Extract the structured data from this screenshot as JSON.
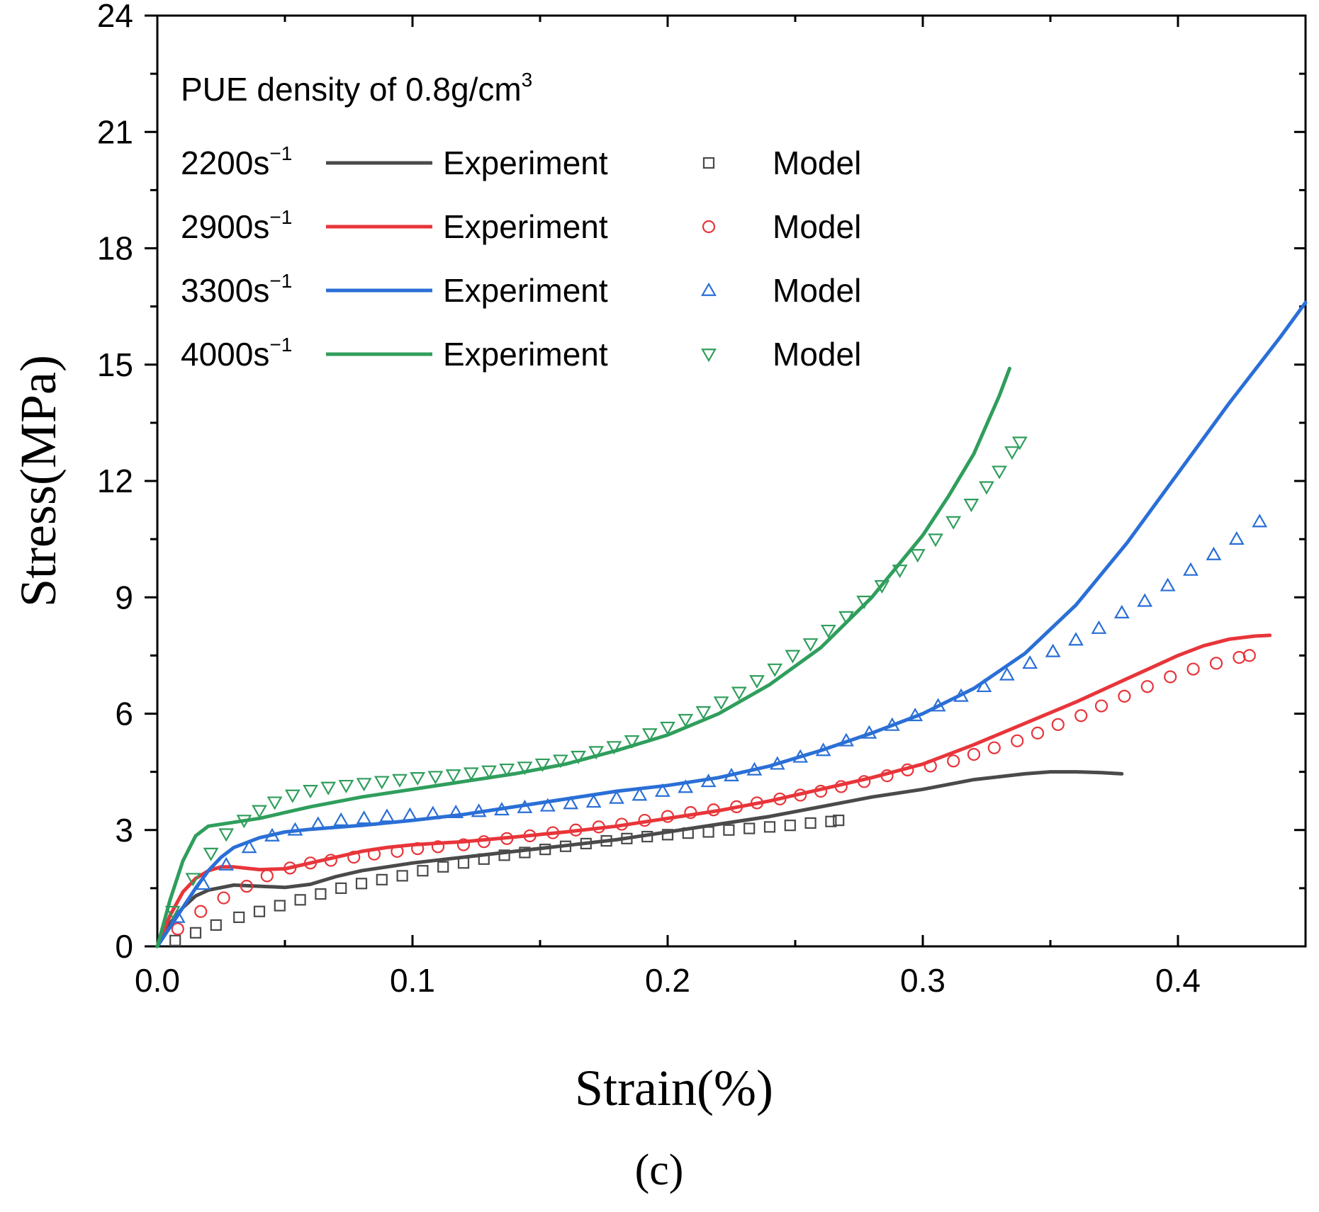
{
  "chart_data": {
    "type": "line",
    "title": "",
    "xlabel": "Strain(%)",
    "ylabel": "Stress(MPa)",
    "panel_label": "(c)",
    "xlim": [
      0.0,
      0.45
    ],
    "ylim": [
      0,
      24
    ],
    "xticks": [
      0.0,
      0.1,
      0.2,
      0.3,
      0.4
    ],
    "xtick_labels": [
      "0.0",
      "0.1",
      "0.2",
      "0.3",
      "0.4"
    ],
    "yticks": [
      0,
      3,
      6,
      9,
      12,
      15,
      18,
      21,
      24
    ],
    "ytick_labels": [
      "0",
      "3",
      "6",
      "9",
      "12",
      "15",
      "18",
      "21",
      "24"
    ],
    "grid": false,
    "legend": {
      "placement": "top-left",
      "title": "PUE density of 0.8g/cm",
      "title_sup": "3",
      "exp_label": "Experiment",
      "model_label": "Model"
    },
    "series": [
      {
        "rate": "2200s",
        "rate_sup": "−1",
        "color": "#4a4a4a",
        "marker": "square",
        "experiment": [
          [
            0.0,
            0.0
          ],
          [
            0.005,
            0.6
          ],
          [
            0.01,
            1.0
          ],
          [
            0.015,
            1.3
          ],
          [
            0.02,
            1.45
          ],
          [
            0.03,
            1.58
          ],
          [
            0.04,
            1.55
          ],
          [
            0.05,
            1.52
          ],
          [
            0.06,
            1.6
          ],
          [
            0.07,
            1.8
          ],
          [
            0.08,
            1.95
          ],
          [
            0.09,
            2.05
          ],
          [
            0.1,
            2.15
          ],
          [
            0.12,
            2.3
          ],
          [
            0.14,
            2.45
          ],
          [
            0.16,
            2.6
          ],
          [
            0.18,
            2.75
          ],
          [
            0.2,
            2.95
          ],
          [
            0.22,
            3.15
          ],
          [
            0.24,
            3.35
          ],
          [
            0.26,
            3.6
          ],
          [
            0.28,
            3.85
          ],
          [
            0.3,
            4.05
          ],
          [
            0.32,
            4.3
          ],
          [
            0.34,
            4.45
          ],
          [
            0.35,
            4.5
          ],
          [
            0.36,
            4.5
          ],
          [
            0.37,
            4.48
          ],
          [
            0.378,
            4.45
          ]
        ],
        "model": [
          [
            0.007,
            0.15
          ],
          [
            0.015,
            0.35
          ],
          [
            0.023,
            0.55
          ],
          [
            0.032,
            0.75
          ],
          [
            0.04,
            0.9
          ],
          [
            0.048,
            1.05
          ],
          [
            0.056,
            1.2
          ],
          [
            0.064,
            1.35
          ],
          [
            0.072,
            1.5
          ],
          [
            0.08,
            1.62
          ],
          [
            0.088,
            1.72
          ],
          [
            0.096,
            1.82
          ],
          [
            0.104,
            1.95
          ],
          [
            0.112,
            2.05
          ],
          [
            0.12,
            2.15
          ],
          [
            0.128,
            2.25
          ],
          [
            0.136,
            2.35
          ],
          [
            0.144,
            2.42
          ],
          [
            0.152,
            2.5
          ],
          [
            0.16,
            2.58
          ],
          [
            0.168,
            2.65
          ],
          [
            0.176,
            2.72
          ],
          [
            0.184,
            2.78
          ],
          [
            0.192,
            2.83
          ],
          [
            0.2,
            2.88
          ],
          [
            0.208,
            2.92
          ],
          [
            0.216,
            2.95
          ],
          [
            0.224,
            3.0
          ],
          [
            0.232,
            3.04
          ],
          [
            0.24,
            3.08
          ],
          [
            0.248,
            3.12
          ],
          [
            0.256,
            3.18
          ],
          [
            0.264,
            3.22
          ],
          [
            0.267,
            3.25
          ]
        ]
      },
      {
        "rate": "2900s",
        "rate_sup": "−1",
        "color": "#e8353a",
        "marker": "circle",
        "experiment": [
          [
            0.0,
            0.0
          ],
          [
            0.005,
            0.8
          ],
          [
            0.01,
            1.4
          ],
          [
            0.015,
            1.75
          ],
          [
            0.02,
            1.95
          ],
          [
            0.025,
            2.05
          ],
          [
            0.03,
            2.05
          ],
          [
            0.04,
            1.98
          ],
          [
            0.05,
            2.0
          ],
          [
            0.06,
            2.15
          ],
          [
            0.07,
            2.3
          ],
          [
            0.08,
            2.45
          ],
          [
            0.09,
            2.55
          ],
          [
            0.1,
            2.62
          ],
          [
            0.12,
            2.7
          ],
          [
            0.14,
            2.82
          ],
          [
            0.16,
            2.95
          ],
          [
            0.18,
            3.1
          ],
          [
            0.2,
            3.3
          ],
          [
            0.22,
            3.5
          ],
          [
            0.24,
            3.75
          ],
          [
            0.26,
            4.05
          ],
          [
            0.28,
            4.35
          ],
          [
            0.3,
            4.7
          ],
          [
            0.32,
            5.2
          ],
          [
            0.34,
            5.75
          ],
          [
            0.36,
            6.3
          ],
          [
            0.38,
            6.9
          ],
          [
            0.4,
            7.5
          ],
          [
            0.41,
            7.75
          ],
          [
            0.42,
            7.92
          ],
          [
            0.43,
            8.0
          ],
          [
            0.436,
            8.02
          ]
        ],
        "model": [
          [
            0.008,
            0.45
          ],
          [
            0.017,
            0.9
          ],
          [
            0.026,
            1.25
          ],
          [
            0.035,
            1.55
          ],
          [
            0.043,
            1.82
          ],
          [
            0.052,
            2.02
          ],
          [
            0.06,
            2.15
          ],
          [
            0.068,
            2.22
          ],
          [
            0.077,
            2.3
          ],
          [
            0.085,
            2.38
          ],
          [
            0.094,
            2.45
          ],
          [
            0.102,
            2.52
          ],
          [
            0.11,
            2.57
          ],
          [
            0.12,
            2.62
          ],
          [
            0.128,
            2.7
          ],
          [
            0.137,
            2.78
          ],
          [
            0.146,
            2.85
          ],
          [
            0.155,
            2.93
          ],
          [
            0.164,
            3.0
          ],
          [
            0.173,
            3.08
          ],
          [
            0.182,
            3.15
          ],
          [
            0.191,
            3.25
          ],
          [
            0.2,
            3.35
          ],
          [
            0.209,
            3.45
          ],
          [
            0.218,
            3.52
          ],
          [
            0.227,
            3.6
          ],
          [
            0.235,
            3.7
          ],
          [
            0.244,
            3.8
          ],
          [
            0.252,
            3.9
          ],
          [
            0.26,
            4.0
          ],
          [
            0.268,
            4.12
          ],
          [
            0.277,
            4.25
          ],
          [
            0.286,
            4.4
          ],
          [
            0.294,
            4.55
          ],
          [
            0.303,
            4.65
          ],
          [
            0.312,
            4.78
          ],
          [
            0.32,
            4.95
          ],
          [
            0.328,
            5.12
          ],
          [
            0.337,
            5.3
          ],
          [
            0.345,
            5.5
          ],
          [
            0.353,
            5.72
          ],
          [
            0.362,
            5.95
          ],
          [
            0.37,
            6.2
          ],
          [
            0.379,
            6.45
          ],
          [
            0.388,
            6.7
          ],
          [
            0.397,
            6.95
          ],
          [
            0.406,
            7.15
          ],
          [
            0.415,
            7.3
          ],
          [
            0.424,
            7.45
          ],
          [
            0.428,
            7.5
          ]
        ]
      },
      {
        "rate": "3300s",
        "rate_sup": "−1",
        "color": "#2a6fd6",
        "marker": "triangle-up",
        "experiment": [
          [
            0.0,
            0.0
          ],
          [
            0.005,
            0.5
          ],
          [
            0.01,
            1.0
          ],
          [
            0.015,
            1.5
          ],
          [
            0.02,
            1.95
          ],
          [
            0.025,
            2.3
          ],
          [
            0.03,
            2.55
          ],
          [
            0.04,
            2.8
          ],
          [
            0.05,
            2.95
          ],
          [
            0.06,
            3.02
          ],
          [
            0.08,
            3.12
          ],
          [
            0.1,
            3.25
          ],
          [
            0.12,
            3.4
          ],
          [
            0.14,
            3.6
          ],
          [
            0.16,
            3.8
          ],
          [
            0.18,
            4.0
          ],
          [
            0.2,
            4.15
          ],
          [
            0.22,
            4.35
          ],
          [
            0.24,
            4.65
          ],
          [
            0.26,
            5.05
          ],
          [
            0.28,
            5.5
          ],
          [
            0.3,
            6.0
          ],
          [
            0.32,
            6.65
          ],
          [
            0.34,
            7.55
          ],
          [
            0.36,
            8.8
          ],
          [
            0.38,
            10.4
          ],
          [
            0.4,
            12.2
          ],
          [
            0.42,
            14.0
          ],
          [
            0.44,
            15.7
          ],
          [
            0.45,
            16.6
          ]
        ],
        "model": [
          [
            0.008,
            0.75
          ],
          [
            0.018,
            1.6
          ],
          [
            0.027,
            2.1
          ],
          [
            0.036,
            2.55
          ],
          [
            0.045,
            2.85
          ],
          [
            0.054,
            3.0
          ],
          [
            0.063,
            3.15
          ],
          [
            0.072,
            3.25
          ],
          [
            0.081,
            3.3
          ],
          [
            0.09,
            3.35
          ],
          [
            0.099,
            3.38
          ],
          [
            0.108,
            3.42
          ],
          [
            0.117,
            3.45
          ],
          [
            0.126,
            3.48
          ],
          [
            0.135,
            3.52
          ],
          [
            0.144,
            3.58
          ],
          [
            0.153,
            3.62
          ],
          [
            0.162,
            3.68
          ],
          [
            0.171,
            3.72
          ],
          [
            0.18,
            3.82
          ],
          [
            0.189,
            3.9
          ],
          [
            0.198,
            4.0
          ],
          [
            0.207,
            4.1
          ],
          [
            0.216,
            4.25
          ],
          [
            0.225,
            4.4
          ],
          [
            0.234,
            4.55
          ],
          [
            0.243,
            4.7
          ],
          [
            0.252,
            4.88
          ],
          [
            0.261,
            5.05
          ],
          [
            0.27,
            5.3
          ],
          [
            0.279,
            5.5
          ],
          [
            0.288,
            5.7
          ],
          [
            0.297,
            5.95
          ],
          [
            0.306,
            6.2
          ],
          [
            0.315,
            6.45
          ],
          [
            0.324,
            6.7
          ],
          [
            0.333,
            7.0
          ],
          [
            0.342,
            7.3
          ],
          [
            0.351,
            7.6
          ],
          [
            0.36,
            7.9
          ],
          [
            0.369,
            8.2
          ],
          [
            0.378,
            8.6
          ],
          [
            0.387,
            8.9
          ],
          [
            0.396,
            9.3
          ],
          [
            0.405,
            9.7
          ],
          [
            0.414,
            10.1
          ],
          [
            0.423,
            10.5
          ],
          [
            0.432,
            10.95
          ]
        ]
      },
      {
        "rate": "4000s",
        "rate_sup": "−1",
        "color": "#2f9e5c",
        "marker": "triangle-down",
        "experiment": [
          [
            0.0,
            0.0
          ],
          [
            0.005,
            1.2
          ],
          [
            0.01,
            2.2
          ],
          [
            0.015,
            2.85
          ],
          [
            0.02,
            3.1
          ],
          [
            0.03,
            3.2
          ],
          [
            0.04,
            3.3
          ],
          [
            0.05,
            3.45
          ],
          [
            0.06,
            3.6
          ],
          [
            0.08,
            3.85
          ],
          [
            0.1,
            4.05
          ],
          [
            0.12,
            4.25
          ],
          [
            0.14,
            4.45
          ],
          [
            0.16,
            4.7
          ],
          [
            0.18,
            5.05
          ],
          [
            0.2,
            5.45
          ],
          [
            0.22,
            6.0
          ],
          [
            0.24,
            6.75
          ],
          [
            0.26,
            7.7
          ],
          [
            0.28,
            9.0
          ],
          [
            0.3,
            10.6
          ],
          [
            0.31,
            11.6
          ],
          [
            0.32,
            12.7
          ],
          [
            0.33,
            14.2
          ],
          [
            0.334,
            14.9
          ]
        ],
        "model": [
          [
            0.006,
            0.9
          ],
          [
            0.014,
            1.75
          ],
          [
            0.021,
            2.4
          ],
          [
            0.027,
            2.9
          ],
          [
            0.034,
            3.25
          ],
          [
            0.04,
            3.5
          ],
          [
            0.046,
            3.72
          ],
          [
            0.053,
            3.9
          ],
          [
            0.06,
            4.02
          ],
          [
            0.067,
            4.1
          ],
          [
            0.074,
            4.15
          ],
          [
            0.081,
            4.2
          ],
          [
            0.088,
            4.25
          ],
          [
            0.095,
            4.3
          ],
          [
            0.102,
            4.35
          ],
          [
            0.109,
            4.38
          ],
          [
            0.116,
            4.42
          ],
          [
            0.123,
            4.47
          ],
          [
            0.13,
            4.52
          ],
          [
            0.137,
            4.57
          ],
          [
            0.144,
            4.62
          ],
          [
            0.151,
            4.7
          ],
          [
            0.158,
            4.8
          ],
          [
            0.165,
            4.9
          ],
          [
            0.172,
            5.02
          ],
          [
            0.179,
            5.15
          ],
          [
            0.186,
            5.3
          ],
          [
            0.193,
            5.48
          ],
          [
            0.2,
            5.65
          ],
          [
            0.207,
            5.85
          ],
          [
            0.214,
            6.05
          ],
          [
            0.221,
            6.3
          ],
          [
            0.228,
            6.55
          ],
          [
            0.235,
            6.85
          ],
          [
            0.242,
            7.15
          ],
          [
            0.249,
            7.5
          ],
          [
            0.256,
            7.8
          ],
          [
            0.263,
            8.15
          ],
          [
            0.27,
            8.5
          ],
          [
            0.277,
            8.9
          ],
          [
            0.284,
            9.3
          ],
          [
            0.291,
            9.7
          ],
          [
            0.298,
            10.1
          ],
          [
            0.305,
            10.5
          ],
          [
            0.312,
            10.95
          ],
          [
            0.319,
            11.4
          ],
          [
            0.325,
            11.85
          ],
          [
            0.33,
            12.25
          ],
          [
            0.335,
            12.75
          ],
          [
            0.338,
            13.0
          ]
        ]
      }
    ]
  }
}
